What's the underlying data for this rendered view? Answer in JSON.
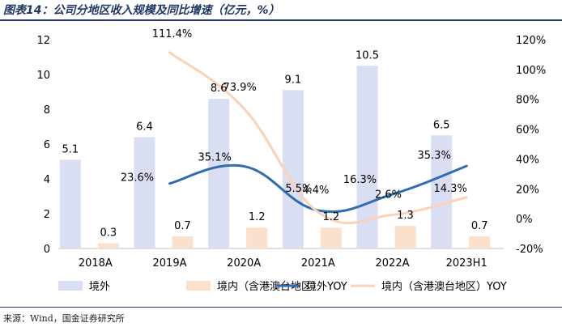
{
  "title": "图表14：公司分地区收入规模及同比增速（亿元，%）",
  "source": "来源：Wind，国金证券研究所",
  "chart_data": {
    "type": "bar",
    "title": "图表14：公司分地区收入规模及同比增速（亿元，%）",
    "categories": [
      "2018A",
      "2019A",
      "2020A",
      "2021A",
      "2022A",
      "2023H1"
    ],
    "series": [
      {
        "name": "境外",
        "type": "bar",
        "axis": "left",
        "color": "#d9def2",
        "values": [
          5.1,
          6.4,
          8.6,
          9.1,
          10.5,
          6.5
        ],
        "labels": [
          "5.1",
          "6.4",
          "8.6",
          "9.1",
          "10.5",
          "6.5"
        ]
      },
      {
        "name": "境内（含港澳台地区）",
        "type": "bar",
        "axis": "left",
        "color": "#fbe0cc",
        "values": [
          0.3,
          0.7,
          1.2,
          1.2,
          1.3,
          0.7
        ],
        "labels": [
          "0.3",
          "0.7",
          "1.2",
          "1.2",
          "1.3",
          "0.7"
        ]
      },
      {
        "name": "境外YOY",
        "type": "line",
        "axis": "right",
        "color": "#2e6bb0",
        "values": [
          null,
          23.6,
          35.1,
          5.5,
          16.3,
          35.3
        ],
        "labels": [
          "",
          "23.6%",
          "35.1%",
          "5.5%",
          "16.3%",
          "35.3%"
        ]
      },
      {
        "name": "境内（含港澳台地区）YOY",
        "type": "line",
        "axis": "right",
        "color": "#fbd2b8",
        "values": [
          null,
          111.4,
          73.9,
          4.4,
          2.6,
          14.3
        ],
        "labels": [
          "",
          "111.4%",
          "73.9%",
          "4.4%",
          "2.6%",
          "14.3%"
        ]
      }
    ],
    "y_left": {
      "range": [
        0,
        12
      ],
      "ticks": [
        "0",
        "2",
        "4",
        "6",
        "8",
        "10",
        "12"
      ]
    },
    "y_right": {
      "range": [
        -20,
        120
      ],
      "ticks": [
        "-20%",
        "0%",
        "20%",
        "40%",
        "60%",
        "80%",
        "100%",
        "120%"
      ]
    },
    "grid": false,
    "legend": "bottom"
  }
}
